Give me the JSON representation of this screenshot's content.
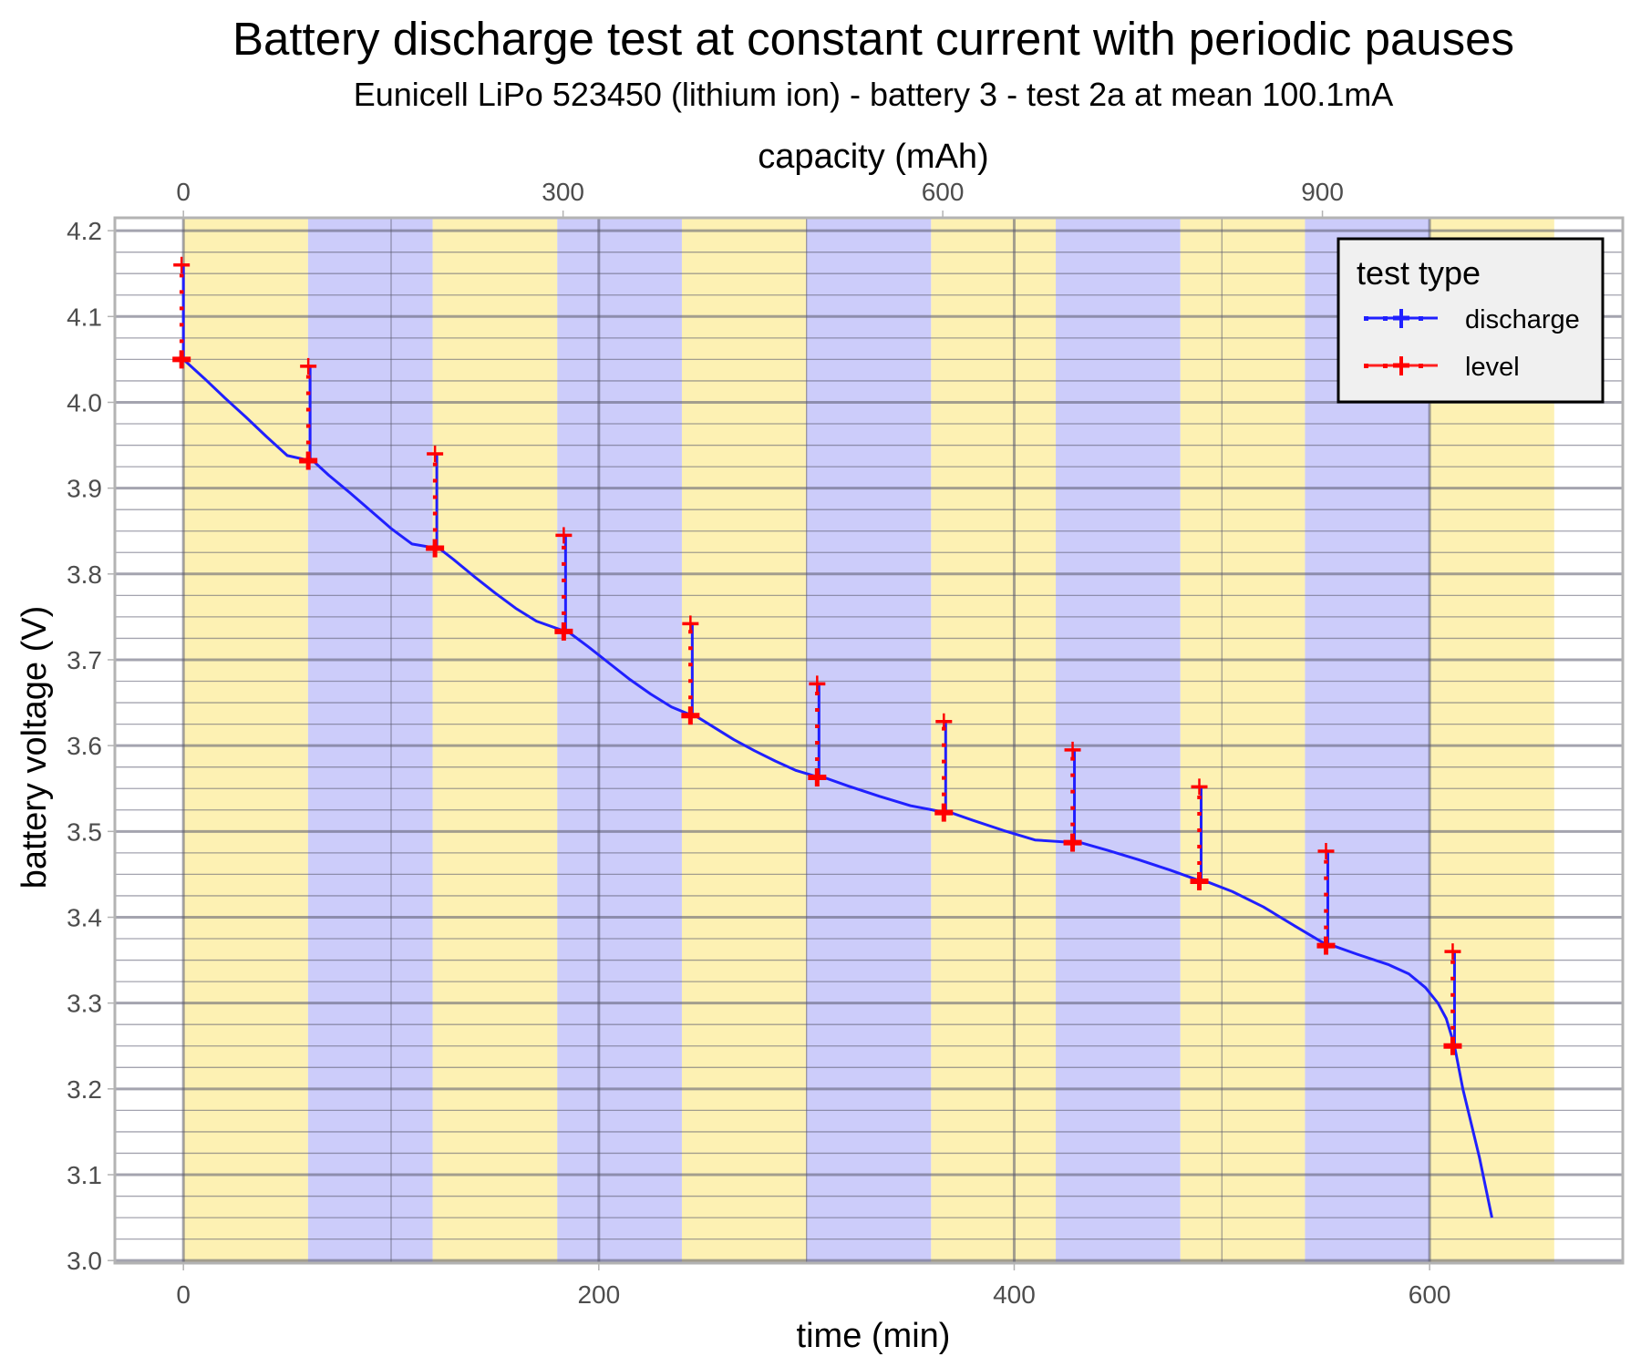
{
  "chart_data": {
    "type": "line",
    "title": "Battery discharge test at constant current with periodic pauses",
    "subtitle": "Eunicell LiPo 523450 (lithium ion) - battery 3 - test 2a at mean 100.1mA",
    "xlabel": "time (min)",
    "x2label": "capacity (mAh)",
    "ylabel": "battery voltage (V)",
    "xlim": [
      -33,
      693
    ],
    "ylim": [
      2.997,
      4.215
    ],
    "x_ticks": [
      0,
      200,
      400,
      600
    ],
    "x_tick_labels": [
      "0",
      "200",
      "400",
      "600"
    ],
    "x2_ticks": [
      0,
      300,
      600,
      900
    ],
    "x2_tick_labels": [
      "0",
      "300",
      "600",
      "900"
    ],
    "y_ticks": [
      3.0,
      3.1,
      3.2,
      3.3,
      3.4,
      3.5,
      3.6,
      3.7,
      3.8,
      3.9,
      4.0,
      4.1,
      4.2
    ],
    "y_tick_labels": [
      "3.0",
      "3.1",
      "3.2",
      "3.3",
      "3.4",
      "3.5",
      "3.6",
      "3.7",
      "3.8",
      "3.9",
      "4.0",
      "4.1",
      "4.2"
    ],
    "grid": true,
    "background_bands": [
      {
        "start": 0,
        "end": 60,
        "color": "#FDF1B3"
      },
      {
        "start": 60,
        "end": 120,
        "color": "#CCCCFA"
      },
      {
        "start": 120,
        "end": 180,
        "color": "#FDF1B3"
      },
      {
        "start": 180,
        "end": 240,
        "color": "#CCCCFA"
      },
      {
        "start": 240,
        "end": 300,
        "color": "#FDF1B3"
      },
      {
        "start": 300,
        "end": 360,
        "color": "#CCCCFA"
      },
      {
        "start": 360,
        "end": 420,
        "color": "#FDF1B3"
      },
      {
        "start": 420,
        "end": 480,
        "color": "#CCCCFA"
      },
      {
        "start": 480,
        "end": 540,
        "color": "#FDF1B3"
      },
      {
        "start": 540,
        "end": 600,
        "color": "#CCCCFA"
      },
      {
        "start": 600,
        "end": 660,
        "color": "#FDF1B3"
      }
    ],
    "legend": {
      "title": "test type",
      "position": "top-right",
      "entries": [
        {
          "label": "discharge",
          "color": "#2020FF"
        },
        {
          "label": "level",
          "color": "#FF0000"
        }
      ]
    },
    "series": [
      {
        "name": "discharge",
        "color": "#2020FF",
        "x": [
          0,
          0,
          10,
          20,
          30,
          40,
          50,
          61,
          61,
          61,
          70,
          80,
          90,
          100,
          110,
          122,
          122,
          122,
          130,
          140,
          150,
          160,
          170,
          184,
          184,
          184,
          195,
          205,
          215,
          225,
          235,
          245,
          245,
          245,
          255,
          265,
          275,
          285,
          295,
          306,
          306,
          306,
          320,
          335,
          350,
          367,
          367,
          367,
          380,
          395,
          410,
          429,
          429,
          429,
          445,
          460,
          475,
          490,
          490,
          490,
          505,
          520,
          535,
          551,
          551,
          551,
          565,
          580,
          590,
          598,
          604,
          608,
          612,
          612,
          612,
          616,
          620,
          624,
          627,
          630
        ],
        "y": [
          4.16,
          4.05,
          4.028,
          4.005,
          3.983,
          3.96,
          3.938,
          3.932,
          4.042,
          3.935,
          3.915,
          3.895,
          3.874,
          3.853,
          3.835,
          3.83,
          3.94,
          3.832,
          3.817,
          3.797,
          3.778,
          3.76,
          3.745,
          3.733,
          3.845,
          3.735,
          3.715,
          3.696,
          3.677,
          3.66,
          3.645,
          3.635,
          3.742,
          3.637,
          3.622,
          3.607,
          3.594,
          3.582,
          3.571,
          3.563,
          3.672,
          3.565,
          3.553,
          3.541,
          3.53,
          3.522,
          3.628,
          3.524,
          3.513,
          3.501,
          3.49,
          3.487,
          3.595,
          3.489,
          3.478,
          3.467,
          3.455,
          3.442,
          3.552,
          3.444,
          3.43,
          3.412,
          3.39,
          3.367,
          3.477,
          3.369,
          3.357,
          3.345,
          3.334,
          3.318,
          3.3,
          3.282,
          3.25,
          3.36,
          3.25,
          3.2,
          3.16,
          3.12,
          3.085,
          3.05
        ]
      },
      {
        "name": "level",
        "color": "#FF0000",
        "pauses": [
          {
            "time": 0,
            "before": 4.05,
            "after": 4.16
          },
          {
            "time": 61,
            "before": 3.932,
            "after": 4.042
          },
          {
            "time": 122,
            "before": 3.83,
            "after": 3.94
          },
          {
            "time": 184,
            "before": 3.733,
            "after": 3.845
          },
          {
            "time": 245,
            "before": 3.635,
            "after": 3.742
          },
          {
            "time": 306,
            "before": 3.563,
            "after": 3.672
          },
          {
            "time": 367,
            "before": 3.522,
            "after": 3.628
          },
          {
            "time": 429,
            "before": 3.487,
            "after": 3.595
          },
          {
            "time": 490,
            "before": 3.442,
            "after": 3.552
          },
          {
            "time": 551,
            "before": 3.367,
            "after": 3.477
          },
          {
            "time": 612,
            "before": 3.25,
            "after": 3.36
          }
        ]
      }
    ]
  }
}
